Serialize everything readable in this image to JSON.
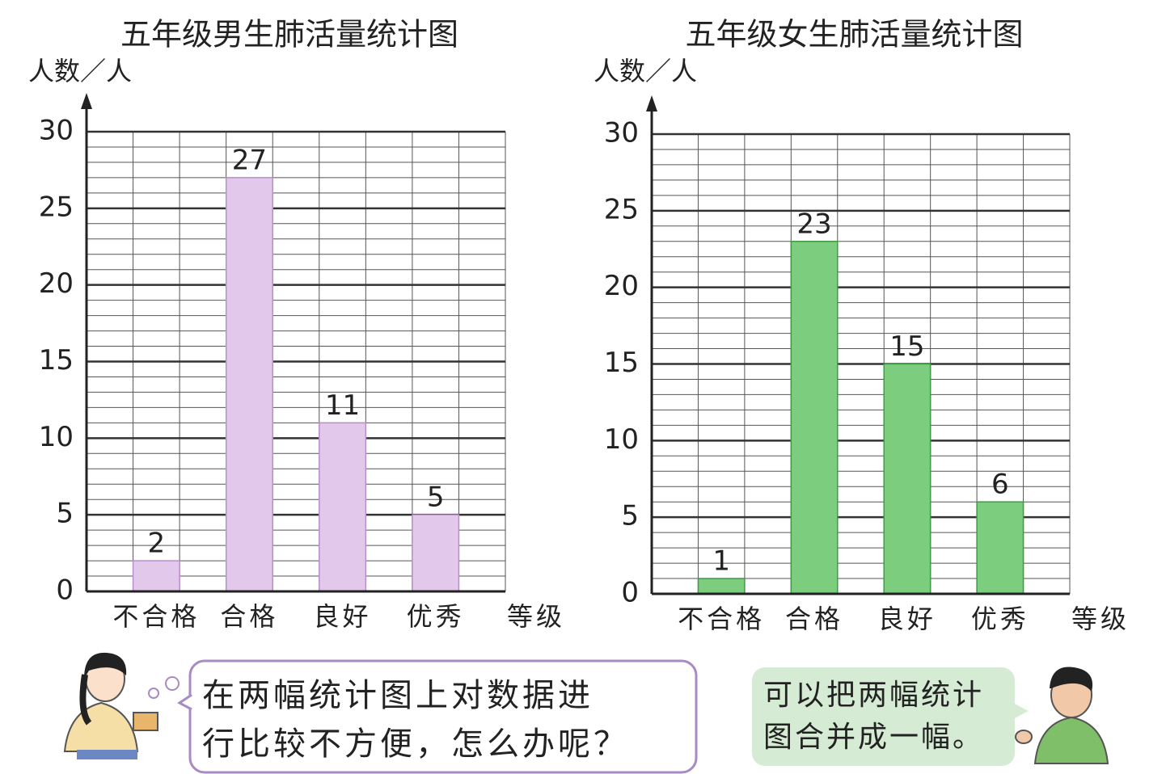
{
  "chart_data": [
    {
      "type": "bar",
      "title": "五年级男生肺活量统计图",
      "y_label": "人数／人",
      "x_label": "等级",
      "categories": [
        "不合格",
        "合格",
        "良好",
        "优秀"
      ],
      "values": [
        2,
        27,
        11,
        5
      ],
      "color": "#e2c8ea",
      "ylim": [
        0,
        30
      ],
      "yticks": [
        0,
        5,
        10,
        15,
        20,
        25,
        30
      ],
      "grid": true
    },
    {
      "type": "bar",
      "title": "五年级女生肺活量统计图",
      "y_label": "人数／人",
      "x_label": "等级",
      "categories": [
        "不合格",
        "合格",
        "良好",
        "优秀"
      ],
      "values": [
        1,
        23,
        15,
        6
      ],
      "color": "#7ccd7e",
      "ylim": [
        0,
        30
      ],
      "yticks": [
        0,
        5,
        10,
        15,
        20,
        25,
        30
      ],
      "grid": true
    }
  ],
  "bubbles": [
    {
      "lines": [
        "在两幅统计图上对数据进",
        "行比较不方便，怎么办呢？"
      ]
    },
    {
      "lines": [
        "可以把两幅统计",
        "图合并成一幅。"
      ]
    }
  ]
}
